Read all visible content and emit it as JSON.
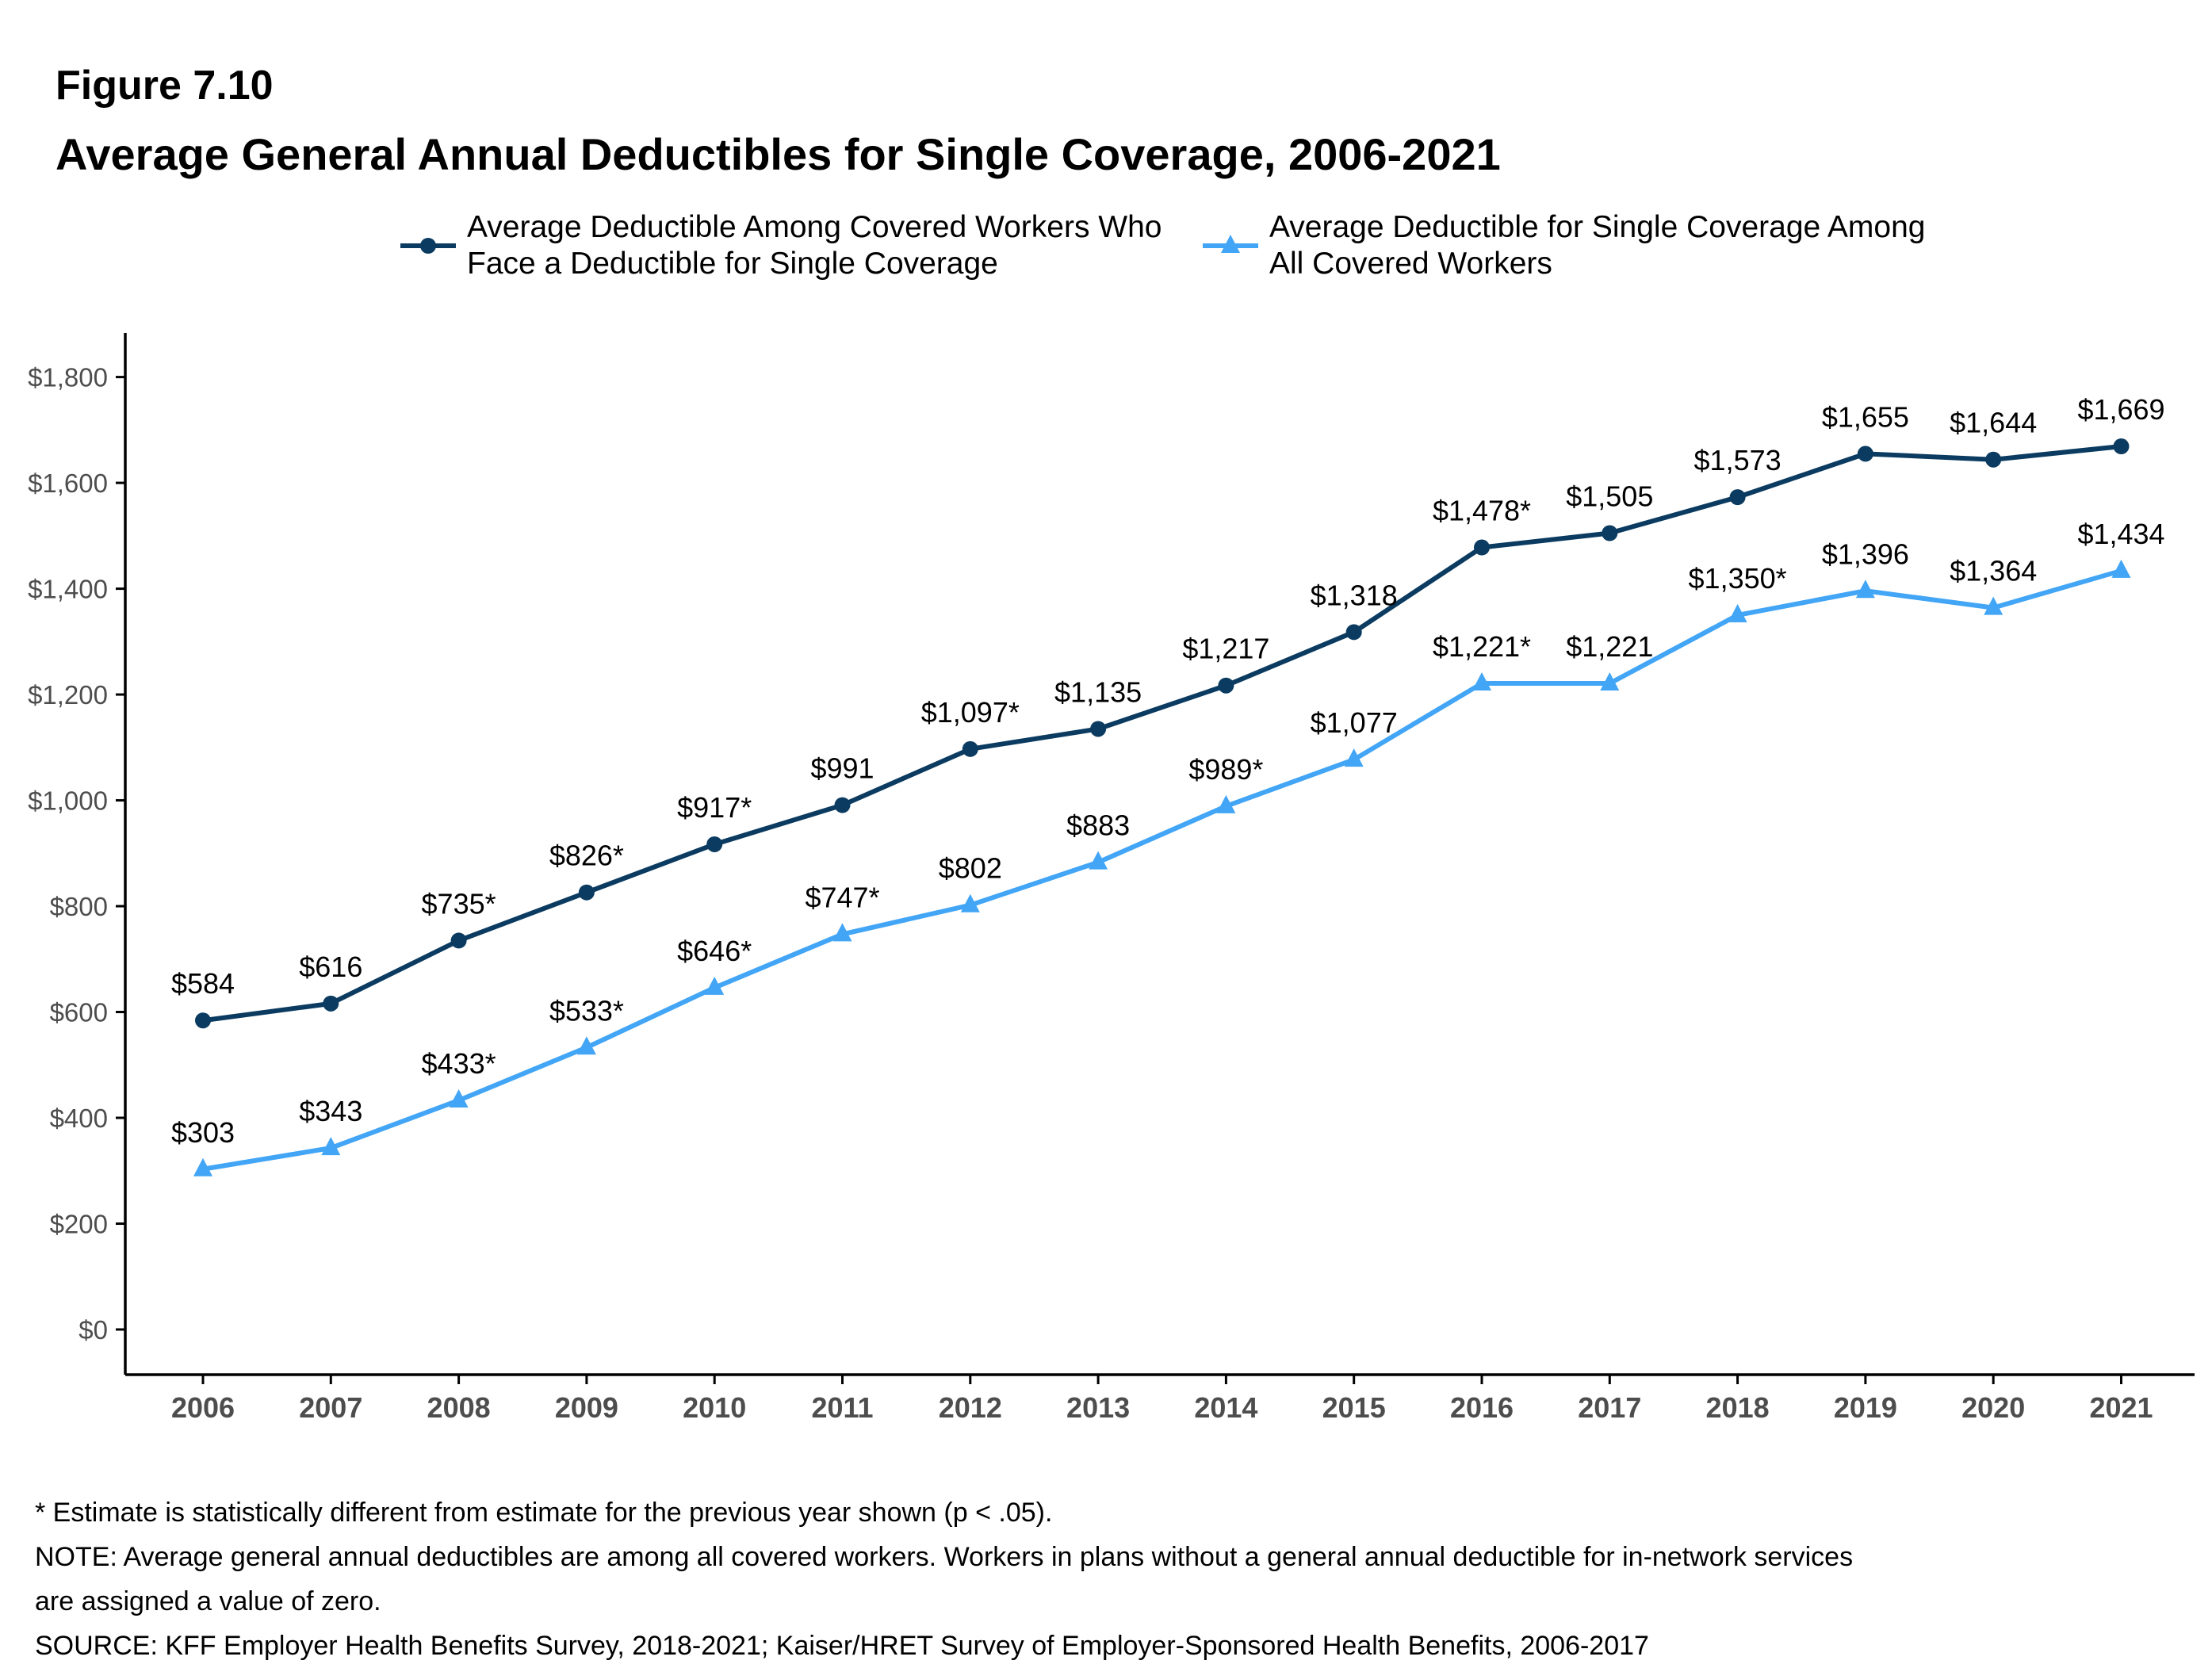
{
  "figure_label": "Figure 7.10",
  "title": "Average General Annual Deductibles for Single Coverage, 2006-2021",
  "colors": {
    "series1": "#0b3b60",
    "series2": "#42a5f5",
    "axis": "#000000",
    "tick_text": "#4d4d4d"
  },
  "chart_data": {
    "type": "line",
    "title": "Average General Annual Deductibles for Single Coverage, 2006-2021",
    "xlabel": "",
    "ylabel": "",
    "categories": [
      "2006",
      "2007",
      "2008",
      "2009",
      "2010",
      "2011",
      "2012",
      "2013",
      "2014",
      "2015",
      "2016",
      "2017",
      "2018",
      "2019",
      "2020",
      "2021"
    ],
    "ylim": [
      0,
      1800
    ],
    "yticks": [
      0,
      200,
      400,
      600,
      800,
      1000,
      1200,
      1400,
      1600,
      1800
    ],
    "ytick_labels": [
      "$0",
      "$200",
      "$400",
      "$600",
      "$800",
      "$1,000",
      "$1,200",
      "$1,400",
      "$1,600",
      "$1,800"
    ],
    "grid": false,
    "legend": "top",
    "series": [
      {
        "name": "Average Deductible Among Covered Workers Who Face a Deductible for Single Coverage",
        "legend_lines": [
          "Average Deductible Among Covered Workers Who",
          "Face a Deductible for Single Coverage"
        ],
        "marker": "circle",
        "color": "#0b3b60",
        "values": [
          584,
          616,
          735,
          826,
          917,
          991,
          1097,
          1135,
          1217,
          1318,
          1478,
          1505,
          1573,
          1655,
          1644,
          1669
        ],
        "labels": [
          "$584",
          "$616",
          "$735*",
          "$826*",
          "$917*",
          "$991",
          "$1,097*",
          "$1,135",
          "$1,217",
          "$1,318",
          "$1,478*",
          "$1,505",
          "$1,573",
          "$1,655",
          "$1,644",
          "$1,669"
        ]
      },
      {
        "name": "Average Deductible for Single Coverage Among All Covered Workers",
        "legend_lines": [
          "Average Deductible for Single Coverage Among",
          "All Covered Workers"
        ],
        "marker": "triangle",
        "color": "#42a5f5",
        "values": [
          303,
          343,
          433,
          533,
          646,
          747,
          802,
          883,
          989,
          1077,
          1221,
          1221,
          1350,
          1396,
          1364,
          1434
        ],
        "labels": [
          "$303",
          "$343",
          "$433*",
          "$533*",
          "$646*",
          "$747*",
          "$802",
          "$883",
          "$989*",
          "$1,077",
          "$1,221*",
          "$1,221",
          "$1,350*",
          "$1,396",
          "$1,364",
          "$1,434"
        ]
      }
    ]
  },
  "footnotes": {
    "asterisk": "* Estimate is statistically different from estimate for the previous year shown (p < .05).",
    "note_line1": "NOTE: Average general annual deductibles are among all covered workers. Workers in plans without a general annual deductible for in-network services",
    "note_line2": "are assigned a value of zero.",
    "source": "SOURCE: KFF Employer Health Benefits Survey, 2018-2021; Kaiser/HRET Survey of Employer-Sponsored Health Benefits, 2006-2017"
  }
}
